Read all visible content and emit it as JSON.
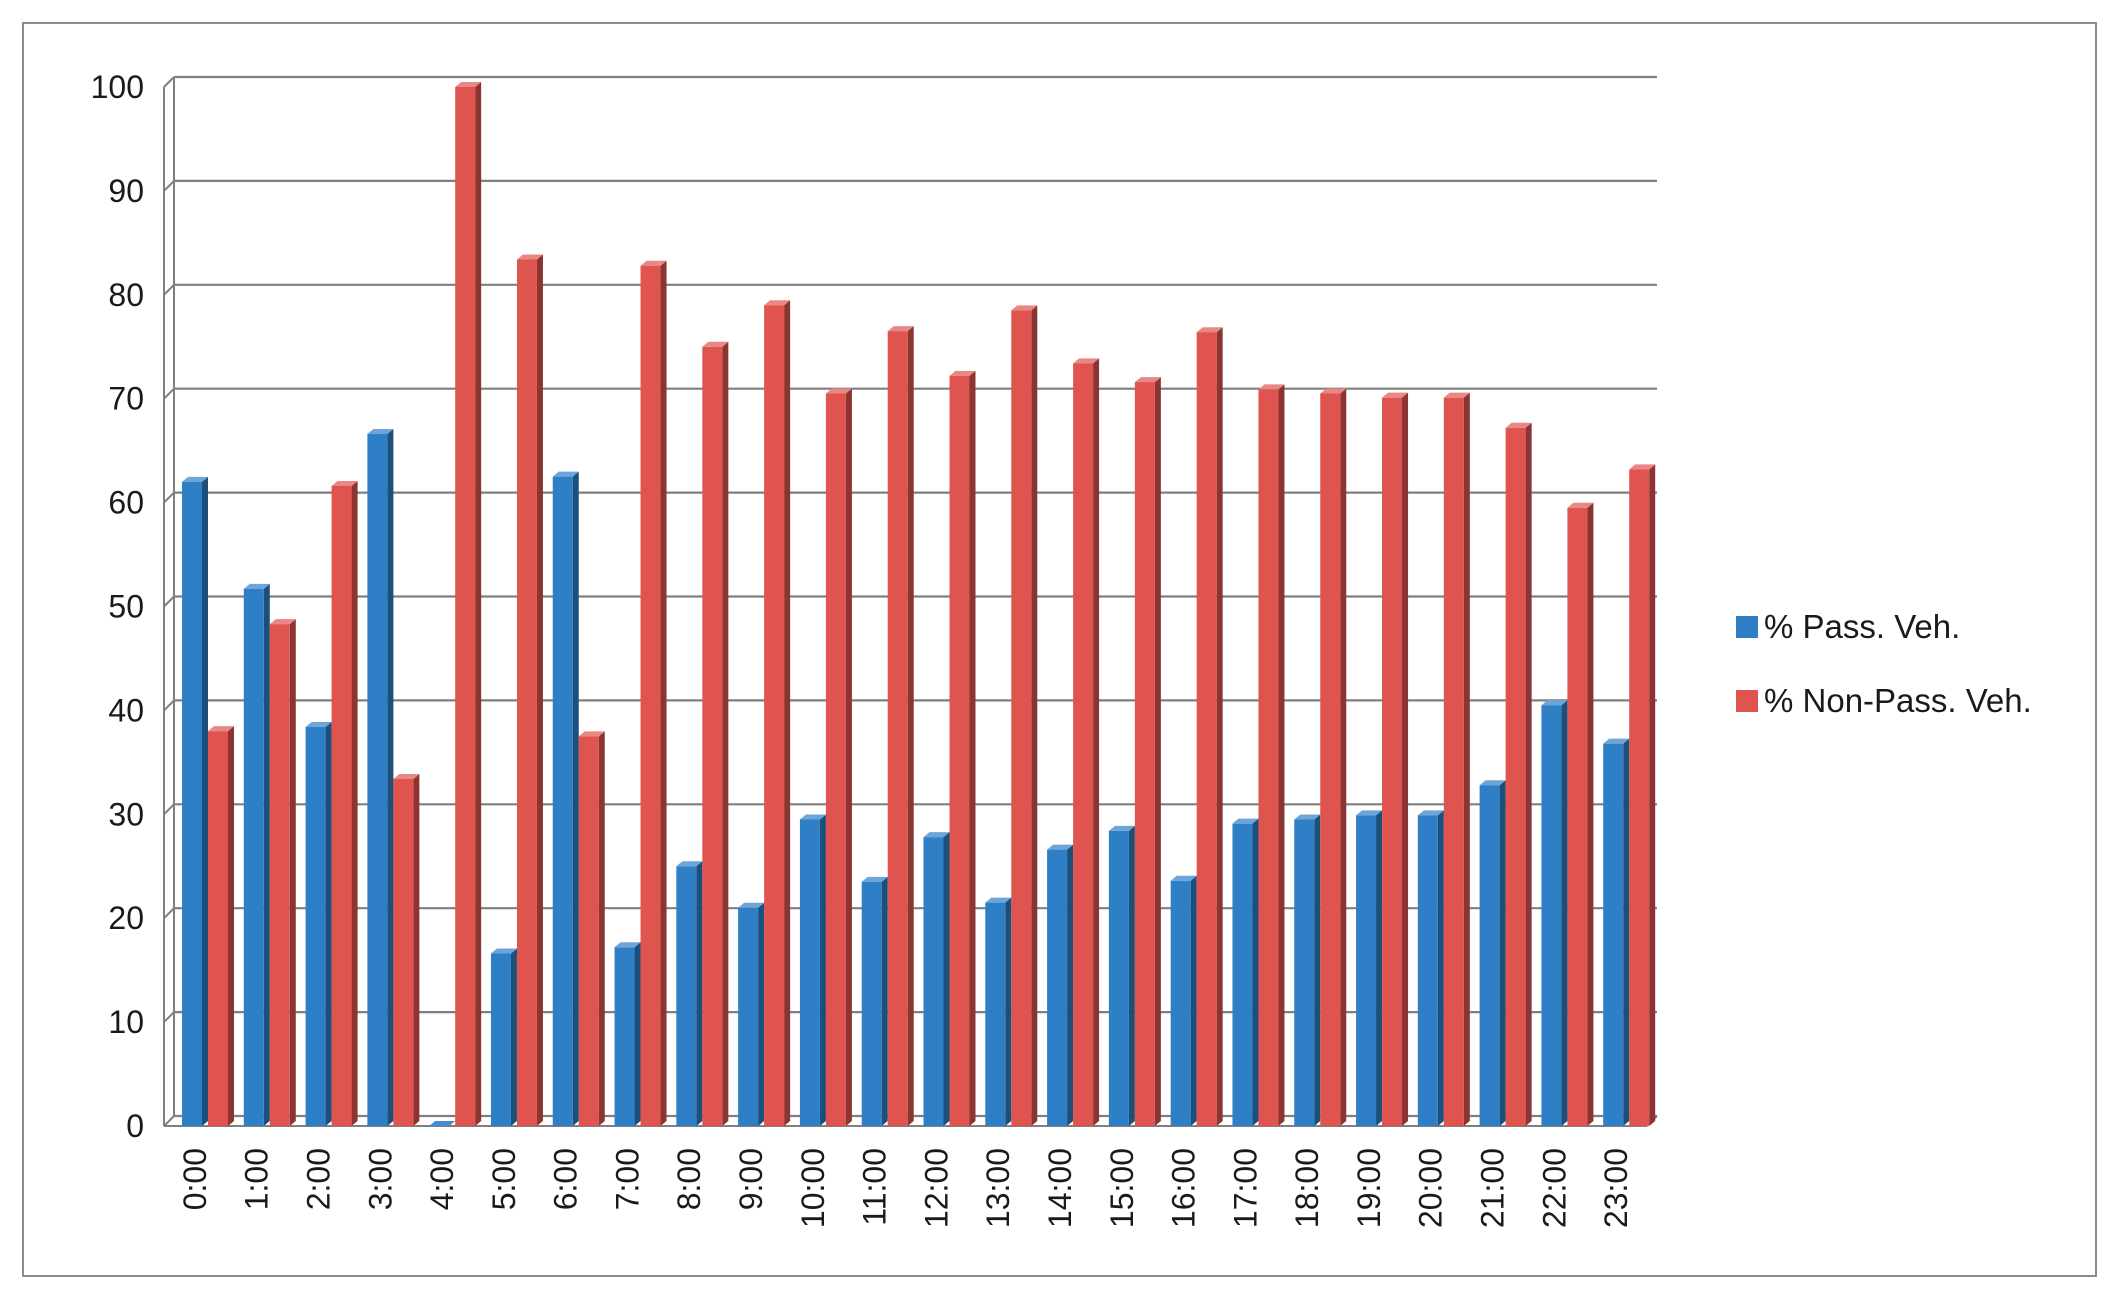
{
  "chart_data": {
    "type": "bar",
    "title": "",
    "xlabel": "",
    "ylabel": "",
    "ylim": [
      0,
      100
    ],
    "yticks": [
      0,
      10,
      20,
      30,
      40,
      50,
      60,
      70,
      80,
      90,
      100
    ],
    "grid": true,
    "legend_position": "right",
    "categories": [
      "0:00",
      "1:00",
      "2:00",
      "3:00",
      "4:00",
      "5:00",
      "6:00",
      "7:00",
      "8:00",
      "9:00",
      "10:00",
      "11:00",
      "12:00",
      "13:00",
      "14:00",
      "15:00",
      "16:00",
      "17:00",
      "18:00",
      "19:00",
      "20:00",
      "21:00",
      "22:00",
      "23:00"
    ],
    "series": [
      {
        "name": "% Pass. Veh.",
        "color": "#2f7fc7",
        "values": [
          62,
          51.7,
          38.4,
          66.6,
          0,
          16.6,
          62.5,
          17.2,
          25,
          21,
          29.5,
          23.5,
          27.8,
          21.5,
          26.6,
          28.4,
          23.6,
          29.1,
          29.5,
          29.9,
          29.9,
          32.8,
          40.5,
          36.8
        ]
      },
      {
        "name": "% Non-Pass. Veh.",
        "color": "#e05450",
        "values": [
          38,
          48.3,
          61.6,
          33.4,
          100,
          83.4,
          37.5,
          82.8,
          75,
          79,
          70.5,
          76.5,
          72.2,
          78.5,
          73.4,
          71.6,
          76.4,
          70.9,
          70.5,
          70.1,
          70.1,
          67.2,
          59.5,
          63.2
        ]
      }
    ]
  }
}
